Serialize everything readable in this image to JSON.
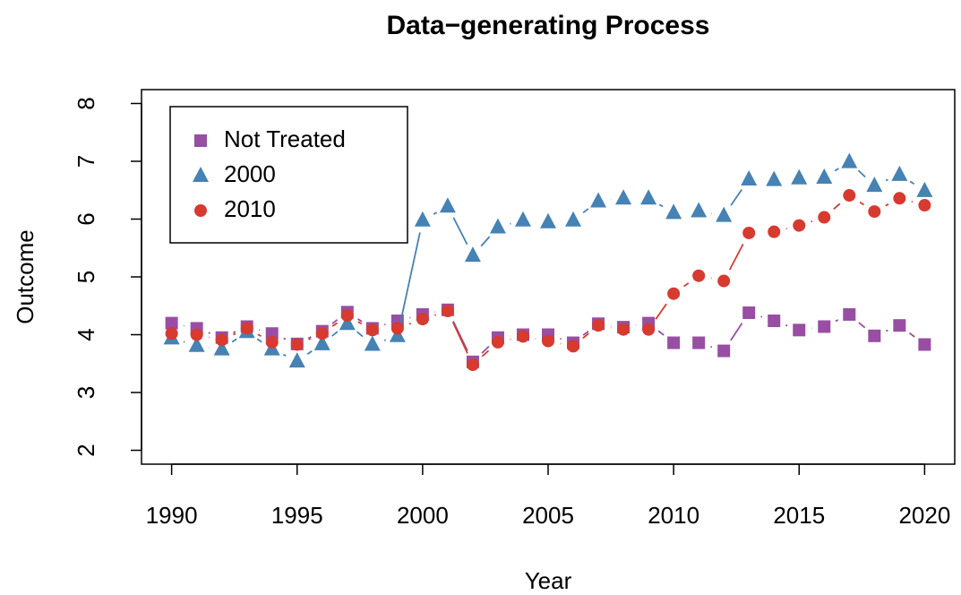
{
  "chart_data": {
    "type": "scatter",
    "title": "Data−generating Process",
    "x_label": "Year",
    "y_label": "Outcome",
    "x": [
      1990,
      1991,
      1992,
      1993,
      1994,
      1995,
      1996,
      1997,
      1998,
      1999,
      2000,
      2001,
      2002,
      2003,
      2004,
      2005,
      2006,
      2007,
      2008,
      2009,
      2010,
      2011,
      2012,
      2013,
      2014,
      2015,
      2016,
      2017,
      2018,
      2019,
      2020
    ],
    "series": [
      {
        "name": "Not Treated",
        "color": "#984EA3",
        "marker": "square",
        "values": [
          4.2,
          4.11,
          3.95,
          4.14,
          4.02,
          3.84,
          4.06,
          4.39,
          4.11,
          4.24,
          4.35,
          4.43,
          3.53,
          3.95,
          4.0,
          4.0,
          3.86,
          4.19,
          4.13,
          4.2,
          3.86,
          3.86,
          3.72,
          4.38,
          4.24,
          4.08,
          4.14,
          4.35,
          3.98,
          4.16,
          3.83
        ]
      },
      {
        "name": "2000",
        "color": "#4682B4",
        "marker": "triangle",
        "values": [
          3.94,
          3.81,
          3.75,
          4.05,
          3.75,
          3.54,
          3.84,
          4.19,
          3.83,
          3.98,
          5.98,
          6.22,
          5.37,
          5.86,
          5.98,
          5.95,
          5.98,
          6.31,
          6.36,
          6.36,
          6.11,
          6.14,
          6.06,
          6.69,
          6.68,
          6.71,
          6.72,
          6.99,
          6.58,
          6.77,
          6.49
        ]
      },
      {
        "name": "2010",
        "color": "#D73A2F",
        "marker": "circle",
        "values": [
          4.02,
          4.0,
          3.91,
          4.11,
          3.87,
          3.83,
          4.02,
          4.33,
          4.08,
          4.11,
          4.27,
          4.41,
          3.48,
          3.87,
          3.97,
          3.89,
          3.8,
          4.16,
          4.09,
          4.09,
          4.71,
          5.02,
          4.93,
          5.76,
          5.78,
          5.89,
          6.03,
          6.41,
          6.13,
          6.36,
          6.24
        ]
      }
    ],
    "xlim": [
      1988.8,
      2021.2
    ],
    "xticks": [
      1990,
      1995,
      2000,
      2005,
      2010,
      2015,
      2020
    ],
    "ylim": [
      1.76,
      8.24
    ],
    "yticks": [
      2,
      3,
      4,
      5,
      6,
      7,
      8
    ],
    "legend": "top-left"
  }
}
